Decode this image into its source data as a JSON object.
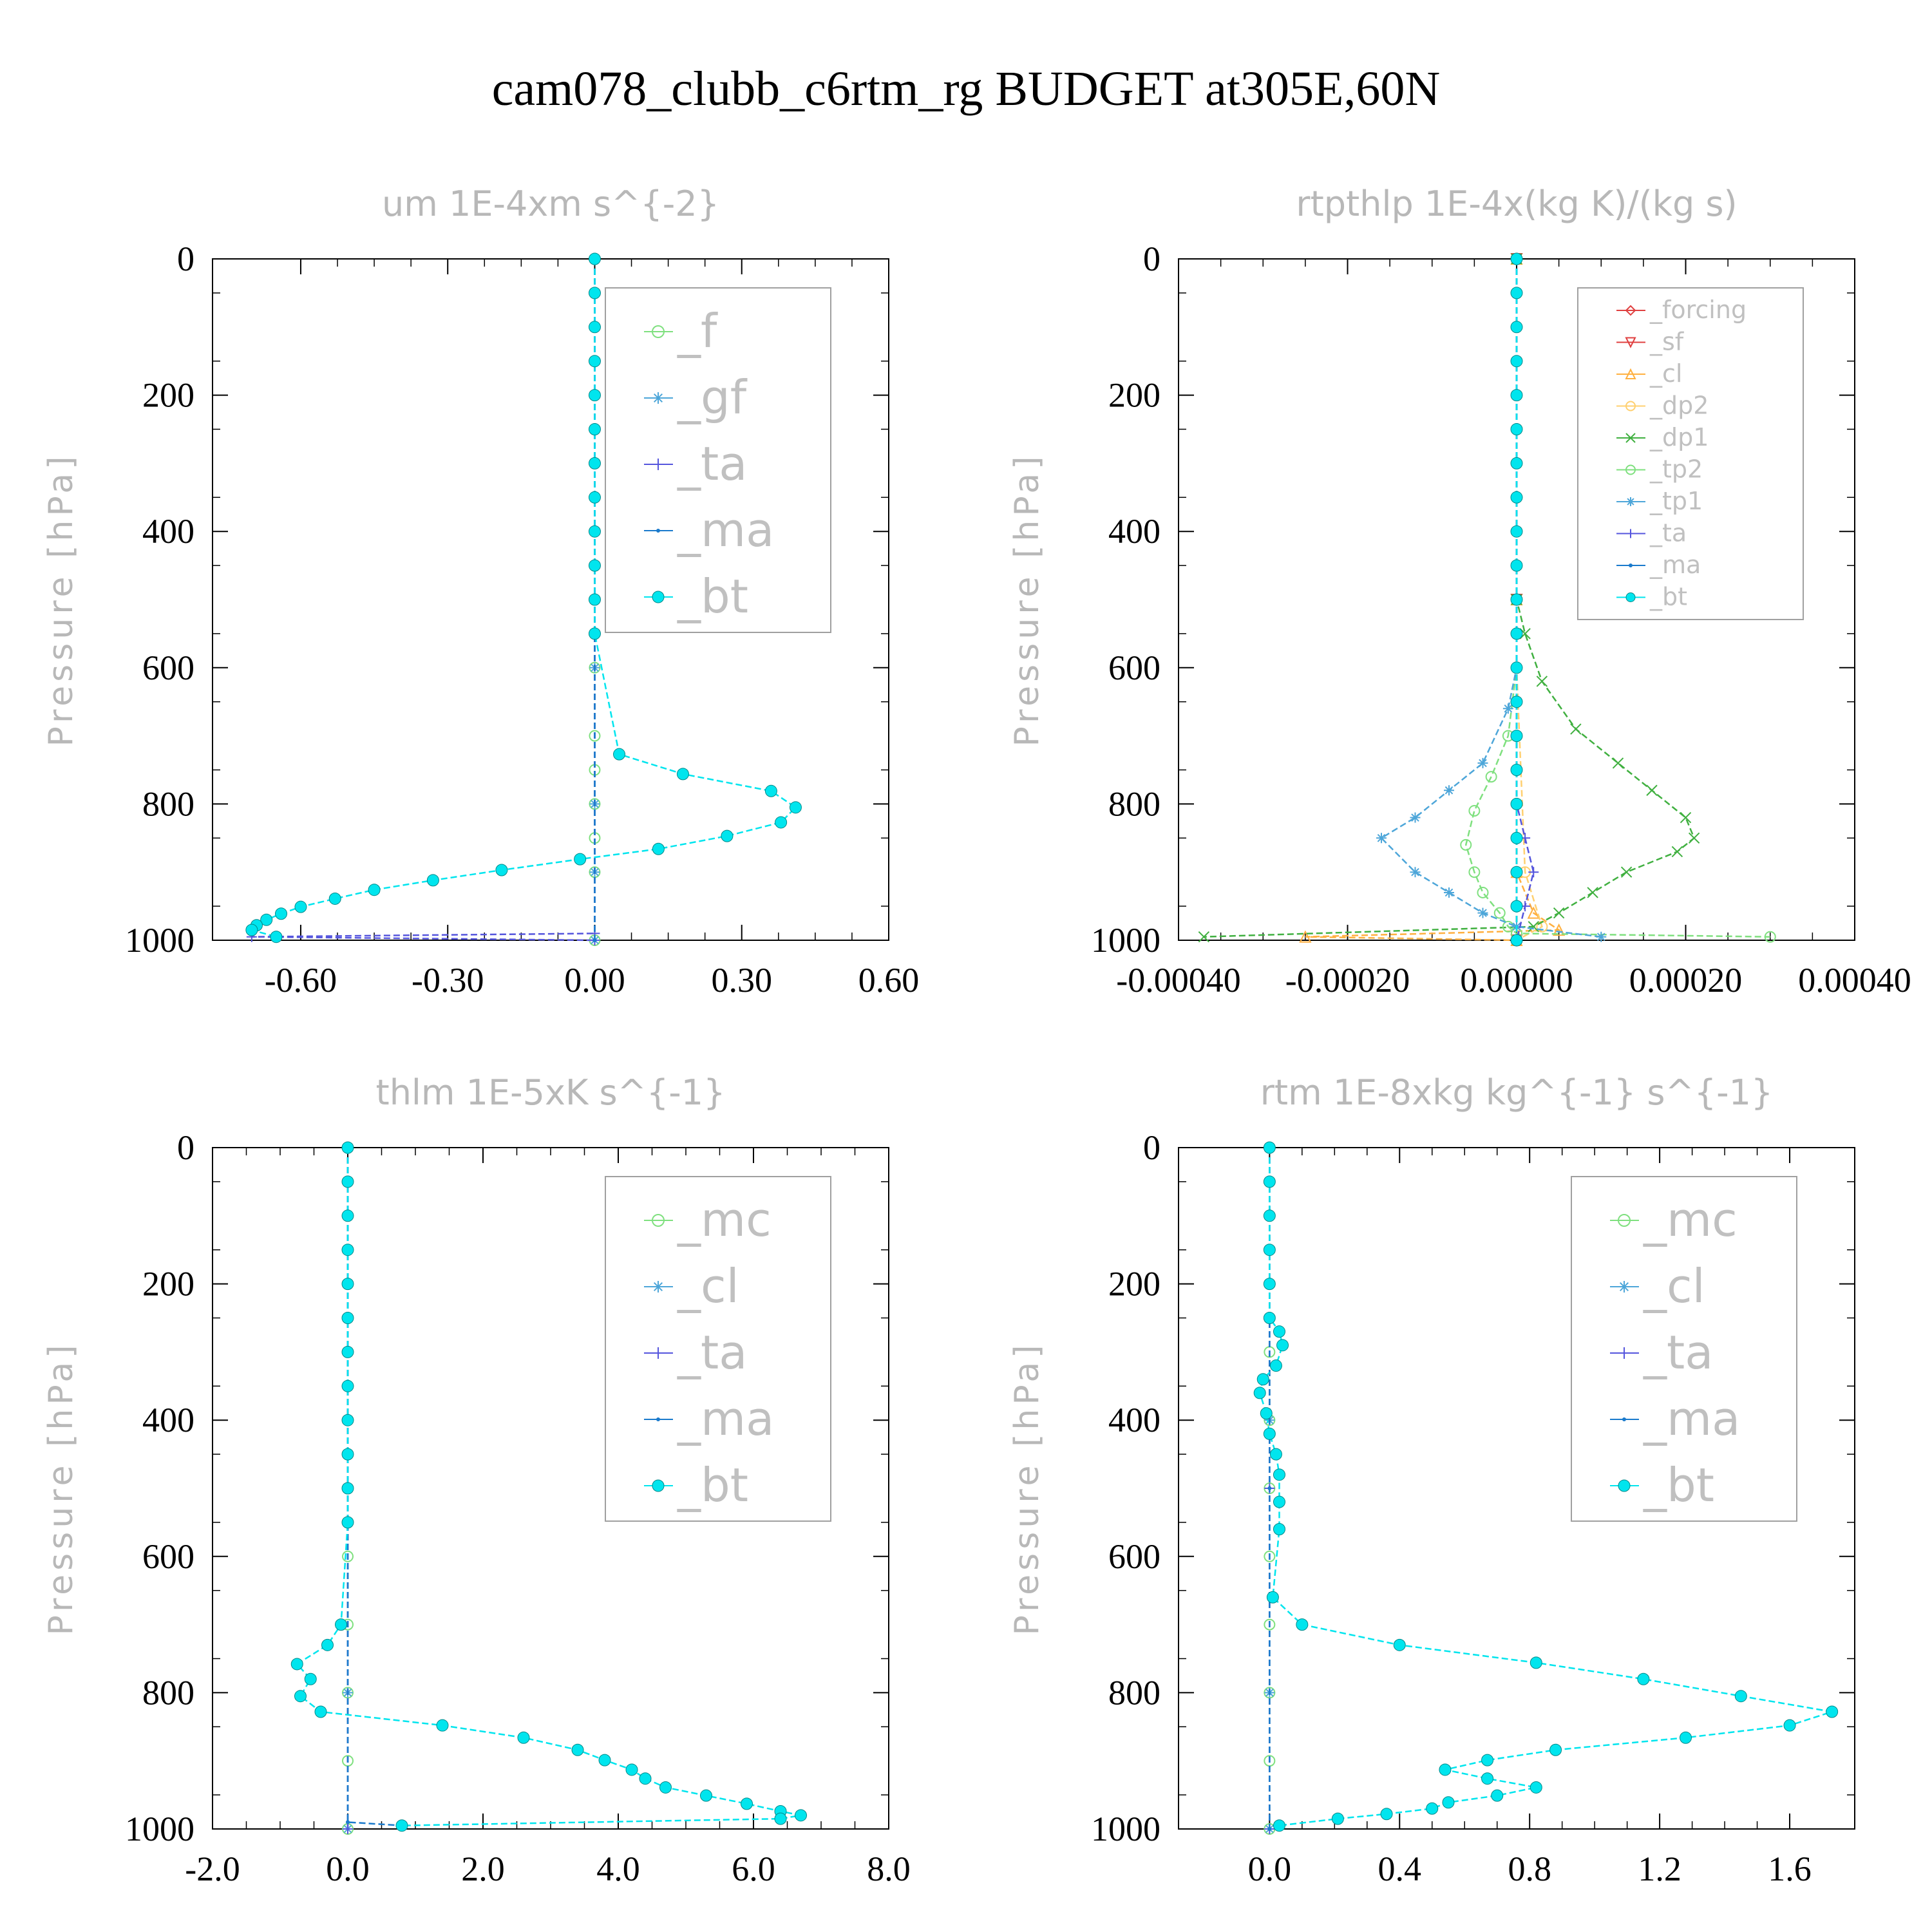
{
  "title": "cam078_clubb_c6rtm_rg  BUDGET at305E,60N",
  "chart_data": [
    {
      "type": "line",
      "title": "um  1E-4xm s^{-2}",
      "ylabel": "Pressure [hPa]",
      "xlim": [
        -0.78,
        0.6
      ],
      "ylim": [
        1000,
        0
      ],
      "xticks": [
        -0.6,
        -0.3,
        0.0,
        0.3,
        0.6
      ],
      "xtick_labels": [
        "-0.60",
        "-0.30",
        "0.00",
        "0.30",
        "0.60"
      ],
      "yticks": [
        0,
        200,
        400,
        600,
        800,
        1000
      ],
      "legend": [
        "_f",
        "_gf",
        "_ta",
        "_ma",
        "_bt"
      ],
      "series": [
        {
          "name": "_f",
          "color": "#7fe07f",
          "marker": "circle-open",
          "x": [
            0,
            0,
            0,
            0,
            0,
            0,
            0,
            0,
            0,
            0,
            0,
            0,
            0
          ],
          "y": [
            0,
            100,
            200,
            300,
            400,
            500,
            600,
            700,
            750,
            800,
            850,
            900,
            1000
          ]
        },
        {
          "name": "_gf",
          "color": "#4da6d9",
          "marker": "asterisk",
          "x": [
            0,
            0,
            0,
            0,
            0,
            0,
            0
          ],
          "y": [
            0,
            200,
            400,
            600,
            800,
            900,
            1000
          ]
        },
        {
          "name": "_ta",
          "color": "#5555dd",
          "marker": "plus",
          "x": [
            0,
            0,
            0,
            -0.7,
            0
          ],
          "y": [
            0,
            500,
            990,
            995,
            1000
          ]
        },
        {
          "name": "_ma",
          "color": "#1a7acc",
          "marker": "dot",
          "x": [
            0,
            0,
            0
          ],
          "y": [
            0,
            500,
            1000
          ]
        },
        {
          "name": "_bt",
          "color": "#00e5ee",
          "marker": "filled",
          "x": [
            0,
            0,
            0,
            0,
            0,
            0,
            0,
            0,
            0,
            0,
            0,
            0,
            0.05,
            0.18,
            0.36,
            0.41,
            0.38,
            0.27,
            0.13,
            -0.03,
            -0.19,
            -0.33,
            -0.45,
            -0.53,
            -0.6,
            -0.64,
            -0.67,
            -0.69,
            -0.7,
            -0.65
          ],
          "y": [
            0,
            50,
            100,
            150,
            200,
            250,
            300,
            350,
            400,
            450,
            500,
            550,
            727,
            756,
            781,
            805,
            827,
            847,
            866,
            881,
            897,
            912,
            926,
            939,
            951,
            961,
            970,
            978,
            985,
            995
          ]
        }
      ]
    },
    {
      "type": "line",
      "title": "rtpthlp  1E-4x(kg K)/(kg s)",
      "ylabel": "Pressure [hPa]",
      "xlim": [
        -0.0004,
        0.0004
      ],
      "ylim": [
        1000,
        0
      ],
      "xticks": [
        -0.0004,
        -0.0002,
        0.0,
        0.0002,
        0.0004
      ],
      "xtick_labels": [
        "-0.00040",
        "-0.00020",
        "0.00000",
        "0.00020",
        "0.00040"
      ],
      "yticks": [
        0,
        200,
        400,
        600,
        800,
        1000
      ],
      "legend": [
        "_forcing",
        "_sf",
        "_cl",
        "_dp2",
        "_dp1",
        "_tp2",
        "_tp1",
        "_ta",
        "_ma",
        "_bt"
      ],
      "series": [
        {
          "name": "_forcing",
          "color": "#e04040",
          "marker": "diamond-open",
          "x": [
            0,
            0,
            0
          ],
          "y": [
            0,
            500,
            1000
          ]
        },
        {
          "name": "_sf",
          "color": "#e04040",
          "marker": "triangle-down",
          "x": [
            0,
            0,
            0
          ],
          "y": [
            0,
            500,
            1000
          ]
        },
        {
          "name": "_cl",
          "color": "#ffb040",
          "marker": "triangle-up",
          "x": [
            0,
            0,
            0,
            2e-05,
            5e-05,
            -0.00025,
            0
          ],
          "y": [
            0,
            500,
            900,
            960,
            985,
            995,
            1000
          ]
        },
        {
          "name": "_dp2",
          "color": "#ffd070",
          "marker": "circle-open",
          "x": [
            0,
            0,
            1e-05,
            3e-05,
            0
          ],
          "y": [
            0,
            600,
            900,
            980,
            1000
          ]
        },
        {
          "name": "_dp1",
          "color": "#40b040",
          "marker": "x",
          "x": [
            0,
            0,
            1e-05,
            3e-05,
            7e-05,
            0.00012,
            0.00016,
            0.0002,
            0.00021,
            0.00019,
            0.00013,
            9e-05,
            5e-05,
            2e-05,
            -0.00037
          ],
          "y": [
            0,
            500,
            550,
            620,
            690,
            740,
            780,
            820,
            850,
            870,
            900,
            930,
            960,
            980,
            995
          ]
        },
        {
          "name": "_tp2",
          "color": "#7fe07f",
          "marker": "circle-open",
          "x": [
            0,
            0,
            -1e-05,
            -3e-05,
            -5e-05,
            -6e-05,
            -5e-05,
            -4e-05,
            -2e-05,
            -1e-05,
            0,
            0.0003
          ],
          "y": [
            0,
            600,
            700,
            760,
            810,
            860,
            900,
            930,
            960,
            980,
            990,
            995
          ]
        },
        {
          "name": "_tp1",
          "color": "#4da6d9",
          "marker": "asterisk",
          "x": [
            0,
            0,
            -1e-05,
            -4e-05,
            -8e-05,
            -0.00012,
            -0.00016,
            -0.00012,
            -8e-05,
            -4e-05,
            0,
            0.0001
          ],
          "y": [
            0,
            600,
            660,
            740,
            780,
            820,
            850,
            900,
            930,
            960,
            980,
            995
          ]
        },
        {
          "name": "_ta",
          "color": "#5555dd",
          "marker": "plus",
          "x": [
            0,
            0,
            1e-05,
            2e-05,
            1e-05,
            0
          ],
          "y": [
            0,
            800,
            850,
            900,
            950,
            1000
          ]
        },
        {
          "name": "_ma",
          "color": "#1a7acc",
          "marker": "dot",
          "x": [
            0,
            0,
            0
          ],
          "y": [
            0,
            500,
            1000
          ]
        },
        {
          "name": "_bt",
          "color": "#00e5ee",
          "marker": "filled",
          "x": [
            0,
            0,
            0,
            0,
            0,
            0,
            0,
            0,
            0,
            0,
            0,
            0,
            0,
            0,
            0,
            0,
            0,
            0,
            0,
            0,
            0
          ],
          "y": [
            0,
            50,
            100,
            150,
            200,
            250,
            300,
            350,
            400,
            450,
            500,
            550,
            600,
            650,
            700,
            750,
            800,
            850,
            900,
            950,
            1000
          ]
        }
      ]
    },
    {
      "type": "line",
      "title": "thlm  1E-5xK s^{-1}",
      "ylabel": "Pressure [hPa]",
      "xlim": [
        -2.0,
        8.0
      ],
      "ylim": [
        1000,
        0
      ],
      "xticks": [
        -2.0,
        0.0,
        2.0,
        4.0,
        6.0,
        8.0
      ],
      "xtick_labels": [
        "-2.0",
        "0.0",
        "2.0",
        "4.0",
        "6.0",
        "8.0"
      ],
      "yticks": [
        0,
        200,
        400,
        600,
        800,
        1000
      ],
      "legend": [
        "_mc",
        "_cl",
        "_ta",
        "_ma",
        "_bt"
      ],
      "series": [
        {
          "name": "_mc",
          "color": "#7fe07f",
          "marker": "circle-open",
          "x": [
            0,
            0,
            0,
            0,
            0,
            0,
            0,
            0,
            0,
            0,
            0
          ],
          "y": [
            0,
            100,
            200,
            300,
            400,
            500,
            600,
            700,
            800,
            900,
            1000
          ]
        },
        {
          "name": "_cl",
          "color": "#4da6d9",
          "marker": "asterisk",
          "x": [
            0,
            0,
            0,
            0
          ],
          "y": [
            0,
            400,
            800,
            1000
          ]
        },
        {
          "name": "_ta",
          "color": "#5555dd",
          "marker": "plus",
          "x": [
            0,
            0,
            0
          ],
          "y": [
            0,
            500,
            1000
          ]
        },
        {
          "name": "_ma",
          "color": "#1a7acc",
          "marker": "dot",
          "x": [
            0,
            0,
            0,
            0.8
          ],
          "y": [
            0,
            500,
            990,
            995
          ]
        },
        {
          "name": "_bt",
          "color": "#00e5ee",
          "marker": "filled",
          "x": [
            0,
            0,
            0,
            0,
            0,
            0,
            0,
            0,
            0,
            0,
            0,
            0,
            -0.1,
            -0.3,
            -0.75,
            -0.55,
            -0.7,
            -0.4,
            1.4,
            2.6,
            3.4,
            3.8,
            4.2,
            4.4,
            4.7,
            5.3,
            5.9,
            6.4,
            6.7,
            6.4,
            0.8
          ],
          "y": [
            0,
            50,
            100,
            150,
            200,
            250,
            300,
            350,
            400,
            450,
            500,
            550,
            700,
            730,
            758,
            780,
            805,
            828,
            848,
            866,
            884,
            899,
            913,
            926,
            939,
            951,
            963,
            974,
            980,
            985,
            995
          ]
        }
      ]
    },
    {
      "type": "line",
      "title": "rtm  1E-8xkg kg^{-1} s^{-1}",
      "ylabel": "Pressure [hPa]",
      "xlim": [
        -0.28,
        1.8
      ],
      "ylim": [
        1000,
        0
      ],
      "xticks": [
        0.0,
        0.4,
        0.8,
        1.2,
        1.6
      ],
      "xtick_labels": [
        "0.0",
        "0.4",
        "0.8",
        "1.2",
        "1.6"
      ],
      "yticks": [
        0,
        200,
        400,
        600,
        800,
        1000
      ],
      "legend": [
        "_mc",
        "_cl",
        "_ta",
        "_ma",
        "_bt"
      ],
      "series": [
        {
          "name": "_mc",
          "color": "#7fe07f",
          "marker": "circle-open",
          "x": [
            0,
            0,
            0,
            0,
            0,
            0,
            0,
            0,
            0,
            0,
            0
          ],
          "y": [
            0,
            100,
            200,
            300,
            400,
            500,
            600,
            700,
            800,
            900,
            1000
          ]
        },
        {
          "name": "_cl",
          "color": "#4da6d9",
          "marker": "asterisk",
          "x": [
            0,
            0,
            0,
            0
          ],
          "y": [
            0,
            400,
            800,
            1000
          ]
        },
        {
          "name": "_ta",
          "color": "#5555dd",
          "marker": "plus",
          "x": [
            0,
            0,
            0
          ],
          "y": [
            0,
            500,
            1000
          ]
        },
        {
          "name": "_ma",
          "color": "#1a7acc",
          "marker": "dot",
          "x": [
            0,
            0,
            0
          ],
          "y": [
            0,
            500,
            1000
          ]
        },
        {
          "name": "_bt",
          "color": "#00e5ee",
          "marker": "filled",
          "x": [
            0,
            0,
            0,
            0,
            0,
            0,
            0.03,
            0.04,
            0.02,
            -0.02,
            -0.03,
            -0.01,
            0,
            0.02,
            0.03,
            0.03,
            0.03,
            0.01,
            0.1,
            0.4,
            0.82,
            1.15,
            1.45,
            1.73,
            1.6,
            1.28,
            0.88,
            0.67,
            0.54,
            0.67,
            0.82,
            0.7,
            0.55,
            0.5,
            0.36,
            0.21,
            0.03
          ],
          "y": [
            0,
            50,
            100,
            150,
            200,
            250,
            270,
            290,
            320,
            340,
            360,
            390,
            420,
            450,
            480,
            520,
            560,
            660,
            700,
            730,
            756,
            780,
            805,
            828,
            848,
            866,
            884,
            899,
            913,
            926,
            939,
            951,
            961,
            970,
            978,
            985,
            995
          ]
        }
      ]
    }
  ]
}
